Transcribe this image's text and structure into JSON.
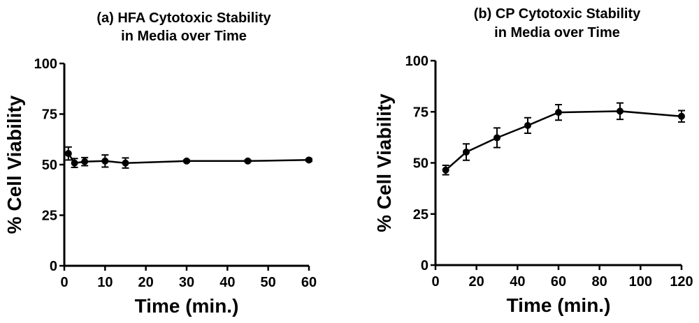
{
  "chart_data": [
    {
      "type": "line",
      "title_lines": [
        "(a) HFA Cytotoxic Stability",
        "in Media over Time"
      ],
      "xlabel": "Time (min.)",
      "ylabel": "% Cell Viability",
      "xlim": [
        0,
        60
      ],
      "ylim": [
        0,
        100
      ],
      "xticks": [
        0,
        10,
        20,
        30,
        40,
        50,
        60
      ],
      "yticks": [
        0,
        25,
        50,
        75,
        100
      ],
      "grid": false,
      "series": [
        {
          "name": "HFA",
          "x": [
            1,
            2.5,
            5,
            10,
            15,
            30,
            45,
            60
          ],
          "y": [
            55.5,
            50.8,
            51.5,
            51.8,
            50.8,
            51.8,
            51.8,
            52.3
          ],
          "yerr": [
            3.2,
            2.2,
            2.0,
            3.0,
            2.5,
            0.5,
            0.5,
            0.6
          ]
        }
      ]
    },
    {
      "type": "line",
      "title_lines": [
        "(b) CP Cytotoxic Stability",
        "in Media over Time"
      ],
      "xlabel": "Time (min.)",
      "ylabel": "% Cell Viability",
      "xlim": [
        0,
        120
      ],
      "ylim": [
        0,
        100
      ],
      "xticks": [
        0,
        20,
        40,
        60,
        80,
        100,
        120
      ],
      "yticks": [
        0,
        25,
        50,
        75,
        100
      ],
      "grid": false,
      "series": [
        {
          "name": "CP",
          "x": [
            5,
            15,
            30,
            45,
            60,
            90,
            120
          ],
          "y": [
            46.5,
            55.3,
            62.3,
            68.3,
            74.7,
            75.3,
            72.8
          ],
          "yerr": [
            2.3,
            4.0,
            4.8,
            3.8,
            3.8,
            4.0,
            2.8
          ]
        }
      ]
    }
  ]
}
